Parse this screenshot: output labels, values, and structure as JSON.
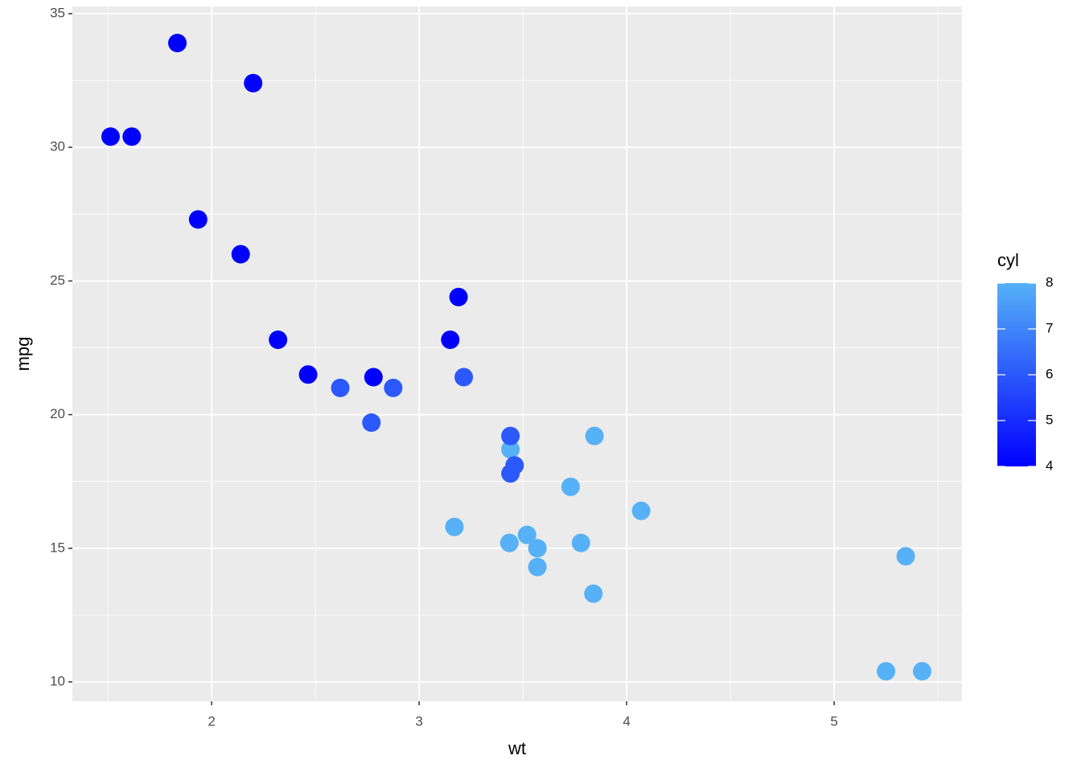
{
  "chart_data": {
    "type": "scatter",
    "x_label": "wt",
    "y_label": "mpg",
    "x": [
      2.62,
      2.875,
      2.32,
      3.215,
      3.44,
      3.46,
      3.57,
      3.19,
      3.15,
      3.44,
      3.44,
      4.07,
      3.73,
      3.78,
      5.25,
      5.424,
      5.345,
      2.2,
      1.615,
      1.835,
      2.465,
      3.52,
      3.435,
      3.84,
      3.845,
      1.935,
      2.14,
      1.513,
      3.17,
      2.77,
      3.57,
      2.78
    ],
    "values": [
      21.0,
      21.0,
      22.8,
      21.4,
      18.7,
      18.1,
      14.3,
      24.4,
      22.8,
      19.2,
      17.8,
      16.4,
      17.3,
      15.2,
      10.4,
      10.4,
      14.7,
      32.4,
      30.4,
      33.9,
      21.5,
      15.5,
      15.2,
      13.3,
      19.2,
      27.3,
      26.0,
      30.4,
      15.8,
      19.7,
      15.0,
      21.4
    ],
    "color_values": [
      6,
      6,
      4,
      6,
      8,
      6,
      8,
      4,
      4,
      6,
      6,
      8,
      8,
      8,
      8,
      8,
      8,
      4,
      4,
      4,
      4,
      8,
      8,
      8,
      8,
      4,
      4,
      4,
      8,
      6,
      8,
      4
    ],
    "xlim": [
      1.329,
      5.616
    ],
    "ylim": [
      9.278,
      35.27
    ],
    "xticks": [
      2,
      3,
      4,
      5
    ],
    "yticks": [
      10,
      15,
      20,
      25,
      30,
      35
    ],
    "x_minor_ticks": [
      1.5,
      2.5,
      3.5,
      4.5,
      5.5
    ],
    "y_minor_ticks": [
      12.5,
      17.5,
      22.5,
      27.5,
      32.5
    ],
    "grid": true,
    "color_scale": {
      "title": "cyl",
      "low": "#0000ff",
      "high": "#56b1f7",
      "lim": [
        4,
        8
      ],
      "ticks": [
        4,
        5,
        6,
        7,
        8
      ]
    },
    "legend_position": "right"
  }
}
